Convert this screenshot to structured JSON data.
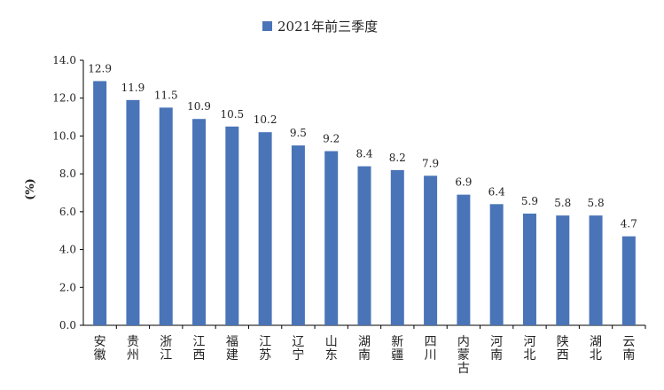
{
  "chart_data": {
    "type": "bar",
    "legend": [
      "2021年前三季度"
    ],
    "legend_placement": "top-center",
    "ylabel": "(%)",
    "xlabel": "",
    "ylim": [
      0,
      14
    ],
    "yticks": [
      "0.0",
      "2.0",
      "4.0",
      "6.0",
      "8.0",
      "10.0",
      "12.0",
      "14.0"
    ],
    "grid": false,
    "bar_color": "#4a74b8",
    "categories": [
      "安徽",
      "贵州",
      "浙江",
      "江西",
      "福建",
      "江苏",
      "辽宁",
      "山东",
      "湖南",
      "新疆",
      "四川",
      "内蒙古",
      "河南",
      "河北",
      "陕西",
      "湖北",
      "云南"
    ],
    "values": [
      12.9,
      11.9,
      11.5,
      10.9,
      10.5,
      10.2,
      9.5,
      9.2,
      8.4,
      8.2,
      7.9,
      6.9,
      6.4,
      5.9,
      5.8,
      5.8,
      4.7
    ],
    "value_labels": [
      "12.9",
      "11.9",
      "11.5",
      "10.9",
      "10.5",
      "10.2",
      "9.5",
      "9.2",
      "8.4",
      "8.2",
      "7.9",
      "6.9",
      "6.4",
      "5.9",
      "5.8",
      "5.8",
      "4.7"
    ]
  }
}
